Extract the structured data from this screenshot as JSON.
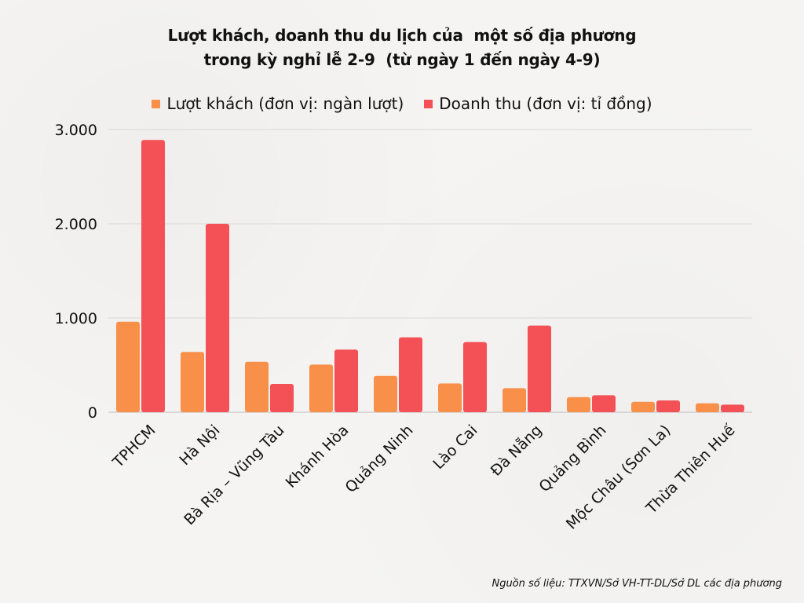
{
  "chart_data": {
    "type": "bar",
    "title_lines": [
      "Lượt khách, doanh thu du lịch của  một số địa phương",
      "trong kỳ nghỉ lễ 2-9  (từ ngày 1 đến ngày 4-9)"
    ],
    "categories": [
      "TPHCM",
      "Hà Nội",
      "Bà Rịa – Vũng Tàu",
      "Khánh Hòa",
      "Quảng Ninh",
      "Lào Cai",
      "Đà Nẵng",
      "Quảng Bình",
      "Mộc Châu (Sơn La)",
      "Thừa Thiên Huế"
    ],
    "series": [
      {
        "name": "Lượt khách (đơn vị: ngàn lượt)",
        "color": "#f9904a",
        "values": [
          960,
          640,
          535,
          505,
          385,
          305,
          255,
          160,
          110,
          95
        ]
      },
      {
        "name": "Doanh thu (đơn vị: tỉ đồng)",
        "color": "#f45157",
        "values": [
          2890,
          2000,
          300,
          665,
          795,
          745,
          920,
          180,
          125,
          80
        ]
      }
    ],
    "ylim": [
      0,
      3000
    ],
    "yticks": [
      0,
      1000,
      2000,
      3000
    ],
    "ytick_labels": [
      "0",
      "1.000",
      "2.000",
      "3.000"
    ],
    "grid": true,
    "legend_position": "top"
  },
  "source_note": "Nguồn số liệu: TTXVN/Sở VH-TT-DL/Sở DL các địa phương"
}
